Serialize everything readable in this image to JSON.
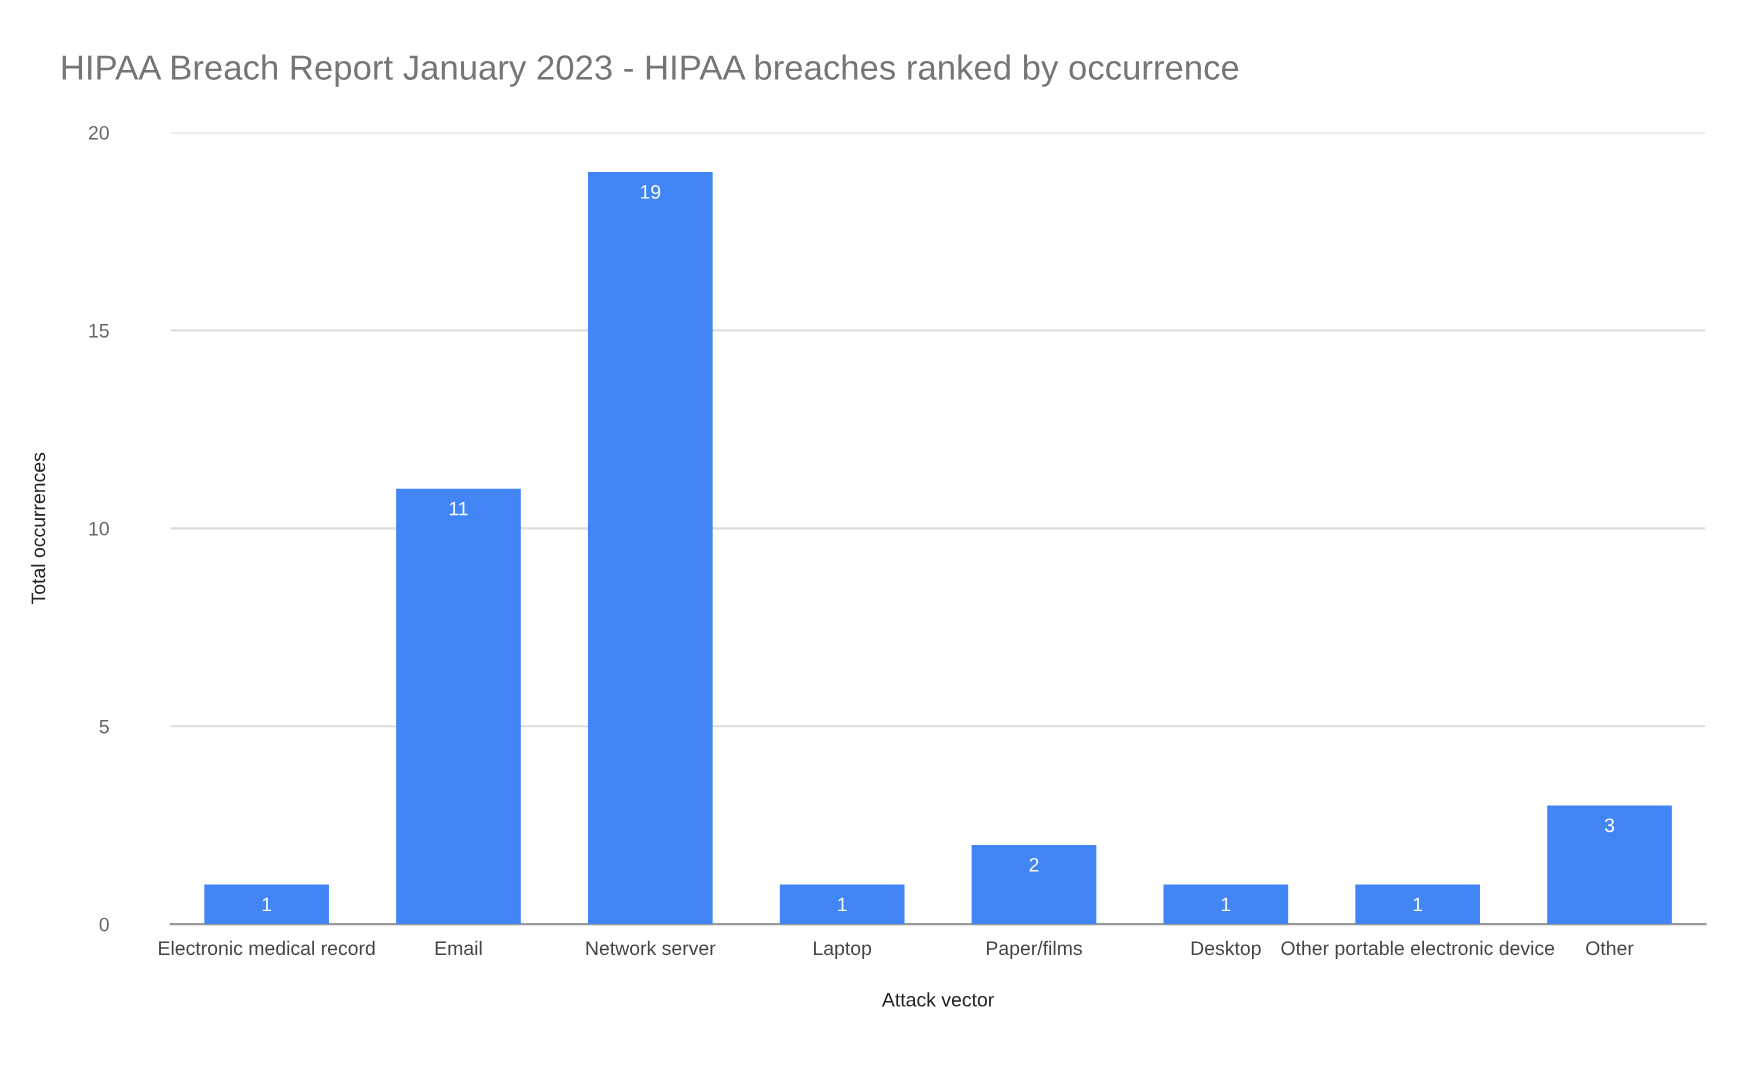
{
  "chart_data": {
    "type": "bar",
    "title": "HIPAA Breach Report January 2023 - HIPAA breaches ranked by occurrence",
    "xlabel": "Attack vector",
    "ylabel": "Total occurrences",
    "categories": [
      "Electronic medical record",
      "Email",
      "Network server",
      "Laptop",
      "Paper/films",
      "Desktop",
      "Other portable electronic device",
      "Other"
    ],
    "values": [
      1,
      11,
      19,
      1,
      2,
      1,
      1,
      3
    ],
    "color": "#4285f4",
    "ylim": [
      0,
      20
    ],
    "yticks": [
      0,
      5,
      10,
      15,
      20
    ],
    "grid": "y",
    "data_labels": true
  }
}
